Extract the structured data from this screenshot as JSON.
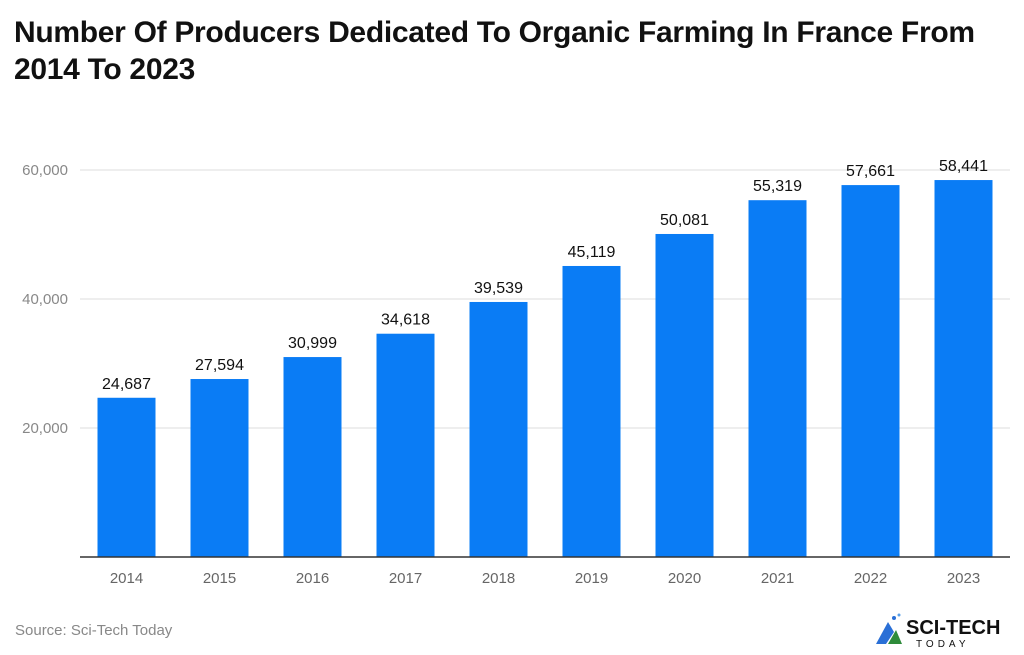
{
  "chart_data": {
    "type": "bar",
    "title": "Number Of Producers Dedicated To Organic Farming In France From 2014 To 2023",
    "categories": [
      "2014",
      "2015",
      "2016",
      "2017",
      "2018",
      "2019",
      "2020",
      "2021",
      "2022",
      "2023"
    ],
    "values": [
      24687,
      27594,
      30999,
      34618,
      39539,
      45119,
      50081,
      55319,
      57661,
      58441
    ],
    "data_labels": [
      "24,687",
      "27,594",
      "30,999",
      "34,618",
      "39,539",
      "45,119",
      "50,081",
      "55,319",
      "57,661",
      "58,441"
    ],
    "yticks": [
      20000,
      40000,
      60000
    ],
    "ytick_labels": [
      "20,000",
      "40,000",
      "60,000"
    ],
    "ylim": [
      0,
      60000
    ],
    "grid": true,
    "bar_color": "#0a7cf5",
    "xlabel": "",
    "ylabel": ""
  },
  "source": "Source: Sci-Tech Today",
  "logo": {
    "text": "SCI-TECH",
    "subtext": "TODAY"
  }
}
